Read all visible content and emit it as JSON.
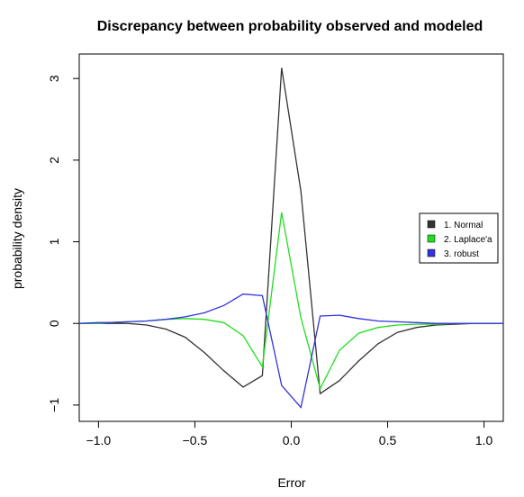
{
  "chart_data": {
    "type": "line",
    "title": "Discrepancy between probability observed and modeled",
    "xlabel": "Error",
    "ylabel": "probability density",
    "xlim": [
      -1.1,
      1.1
    ],
    "ylim": [
      -1.2,
      3.3
    ],
    "x_ticks": [
      -1.0,
      -0.5,
      0.0,
      0.5,
      1.0
    ],
    "x_tick_labels": [
      "−1.0",
      "−0.5",
      "0.0",
      "0.5",
      "1.0"
    ],
    "y_ticks": [
      -1,
      0,
      1,
      2,
      3
    ],
    "y_tick_labels": [
      "−1",
      "0",
      "1",
      "2",
      "3"
    ],
    "grid": false,
    "legend_position": "right",
    "series": [
      {
        "name": "1. Normal",
        "color": "#333333",
        "x": [
          -1.1,
          -1.0,
          -0.95,
          -0.85,
          -0.75,
          -0.65,
          -0.55,
          -0.45,
          -0.35,
          -0.25,
          -0.15,
          -0.05,
          0.05,
          0.15,
          0.25,
          0.35,
          0.45,
          0.55,
          0.65,
          0.75,
          0.85,
          0.95,
          1.05,
          1.1
        ],
        "y": [
          0.0,
          0.0,
          0.0,
          0.0,
          -0.02,
          -0.07,
          -0.17,
          -0.36,
          -0.58,
          -0.78,
          -0.64,
          3.13,
          1.62,
          -0.86,
          -0.7,
          -0.46,
          -0.25,
          -0.11,
          -0.05,
          -0.02,
          -0.01,
          0.0,
          0.0,
          0.0
        ]
      },
      {
        "name": "2. Laplace'a",
        "color": "#22dd22",
        "x": [
          -1.1,
          -1.0,
          -0.95,
          -0.85,
          -0.75,
          -0.65,
          -0.55,
          -0.45,
          -0.35,
          -0.25,
          -0.15,
          -0.05,
          0.05,
          0.15,
          0.25,
          0.35,
          0.45,
          0.55,
          0.65,
          0.75,
          0.85,
          0.95,
          1.05,
          1.1
        ],
        "y": [
          0.0,
          0.0,
          0.01,
          0.02,
          0.03,
          0.05,
          0.06,
          0.05,
          0.01,
          -0.15,
          -0.53,
          1.36,
          0.07,
          -0.8,
          -0.33,
          -0.12,
          -0.05,
          -0.02,
          -0.01,
          -0.01,
          0.0,
          0.0,
          0.0,
          0.0
        ]
      },
      {
        "name": "3. robust",
        "color": "#3333dd",
        "x": [
          -1.1,
          -1.0,
          -0.95,
          -0.85,
          -0.75,
          -0.65,
          -0.55,
          -0.45,
          -0.35,
          -0.25,
          -0.15,
          -0.05,
          0.05,
          0.15,
          0.25,
          0.35,
          0.45,
          0.55,
          0.65,
          0.75,
          0.85,
          0.95,
          1.05,
          1.1
        ],
        "y": [
          0.0,
          0.01,
          0.01,
          0.02,
          0.03,
          0.05,
          0.08,
          0.13,
          0.22,
          0.36,
          0.34,
          -0.76,
          -1.03,
          0.09,
          0.1,
          0.06,
          0.03,
          0.02,
          0.01,
          0.0,
          0.0,
          0.0,
          0.0,
          0.0
        ]
      }
    ]
  }
}
